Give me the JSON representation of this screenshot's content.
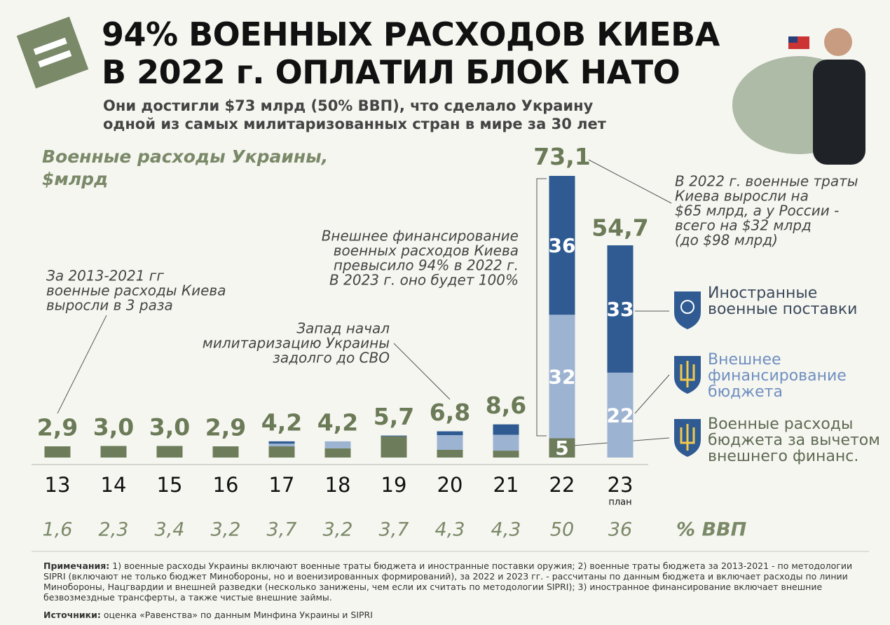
{
  "header": {
    "title_lines": [
      "94% ВОЕННЫХ РАСХОДОВ КИЕВА",
      "В 2022 г. ОПЛАТИЛ БЛОК НАТО"
    ],
    "subtitle_lines": [
      "Они достигли $73 млрд (50% ВВП), что сделало Украину",
      "одной из самых милитаризованных стран в мире за 30 лет"
    ]
  },
  "chart_data": {
    "type": "bar",
    "stacked": true,
    "title_lines": [
      "Военные расходы Украины,",
      "$млрд"
    ],
    "categories": [
      "13",
      "14",
      "15",
      "16",
      "17",
      "18",
      "19",
      "20",
      "21",
      "22",
      "23"
    ],
    "category_notes": [
      null,
      null,
      null,
      null,
      null,
      null,
      null,
      null,
      null,
      null,
      "план"
    ],
    "ylim": [
      0,
      75
    ],
    "series": [
      {
        "name": "Военные расходы бюджета за вычетом внешнего финанс.",
        "color": "#6d7d5b",
        "text_color": "#5d6a52",
        "values": [
          2.9,
          3.0,
          3.0,
          2.9,
          2.9,
          2.4,
          5.5,
          2.0,
          1.8,
          5,
          0
        ],
        "value_labels": [
          null,
          null,
          null,
          null,
          null,
          null,
          null,
          null,
          null,
          "5",
          null
        ]
      },
      {
        "name": "Внешнее финансирование бюджета",
        "color": "#9db3d2",
        "text_color": "#6f8fbf",
        "values": [
          0,
          0,
          0,
          0,
          0.7,
          1.8,
          0,
          3.8,
          4.1,
          32,
          22
        ],
        "value_labels": [
          null,
          null,
          null,
          null,
          null,
          null,
          null,
          null,
          null,
          "32",
          "22"
        ]
      },
      {
        "name": "Иностранные военные поставки",
        "color": "#2f5b92",
        "text_color": "#3c4a5c",
        "values": [
          0,
          0,
          0,
          0,
          0.6,
          0,
          0.2,
          1.0,
          2.7,
          36,
          33
        ],
        "value_labels": [
          null,
          null,
          null,
          null,
          null,
          null,
          null,
          null,
          null,
          "36",
          "33"
        ]
      }
    ],
    "totals": {
      "values": [
        2.9,
        3.0,
        3.0,
        2.9,
        4.2,
        4.2,
        5.7,
        6.8,
        8.6,
        73.1,
        54.7
      ],
      "value_labels": [
        "2,9",
        "3,0",
        "3,0",
        "2,9",
        "4,2",
        "4,2",
        "5,7",
        "6,8",
        "8,6",
        "73,1",
        "54,7"
      ]
    },
    "gdp_share": {
      "label": "% ВВП",
      "values": [
        1.6,
        2.3,
        3.4,
        3.2,
        3.7,
        3.2,
        3.7,
        4.3,
        4.3,
        50,
        36
      ],
      "value_labels": [
        "1,6",
        "2,3",
        "3,4",
        "3,2",
        "3,7",
        "3,2",
        "3,7",
        "4,3",
        "4,3",
        "50",
        "36"
      ]
    },
    "annotations": [
      {
        "lines": [
          "За 2013-2021 гг",
          "военные расходы Киева",
          "выросли в 3 раза"
        ]
      },
      {
        "lines": [
          "Запад начал",
          "милитаризацию Украины",
          "задолго до СВО"
        ]
      },
      {
        "lines": [
          "Внешнее финансирование",
          "военных расходов Киева",
          "превысило 94% в 2022 г.",
          "В 2023 г. оно будет 100%"
        ]
      },
      {
        "lines": [
          "В 2022 г. военные траты",
          "Киева выросли на",
          "$65 млрд, а у России -",
          "всего на $32 млрд",
          "(до $98 млрд)"
        ]
      }
    ]
  },
  "notes": {
    "label": "Примечания:",
    "text": "1) военные расходы Украины включают военные траты бюджета и иностранные поставки оружия; 2) военные траты бюджета за 2013-2021 - по методологии SIPRI (включают не только бюджет Минобороны, но и военизированных формирований), за 2022 и 2023 гг. - рассчитаны по данным бюджета и включает расходы по линии Минобороны, Нацгвардии и внешней разведки (несколько занижены, чем если их считать по методологии SIPRI); 3) иностранное финансирование включает внешние безвозмездные трансферты, а также чистые внешние займы."
  },
  "sources": {
    "label": "Источники:",
    "text": "оценка «Равенства» по данным Минфина Украины и SIPRI"
  }
}
